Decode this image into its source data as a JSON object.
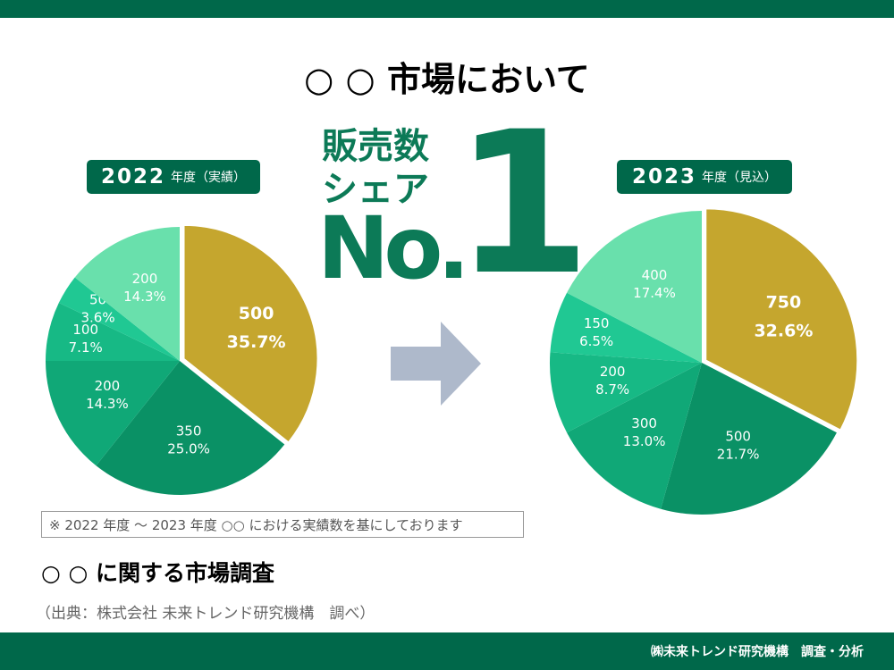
{
  "title": "○ ○ 市場において",
  "headline": {
    "line1": "販売数",
    "line2": "シェア",
    "no": "No.",
    "one": "1"
  },
  "chart_data": [
    {
      "type": "pie",
      "year_label": "2022",
      "year_suffix": "年度（実績）",
      "values": [
        500,
        350,
        200,
        100,
        50,
        200
      ],
      "percent_labels": [
        "35.7%",
        "25.0%",
        "14.3%",
        "7.1%",
        "3.6%",
        "14.3%"
      ],
      "colors": [
        "#C5A62E",
        "#0A9165",
        "#10A877",
        "#17B985",
        "#20C893",
        "#69E0AC"
      ],
      "highlight_index": 0,
      "start": "top",
      "direction": "clockwise"
    },
    {
      "type": "pie",
      "year_label": "2023",
      "year_suffix": "年度（見込）",
      "values": [
        750,
        500,
        300,
        200,
        150,
        400
      ],
      "percent_labels": [
        "32.6%",
        "21.7%",
        "13.0%",
        "8.7%",
        "6.5%",
        "17.4%"
      ],
      "colors": [
        "#C5A62E",
        "#0A9165",
        "#10A877",
        "#17B985",
        "#20C893",
        "#69E0AC"
      ],
      "highlight_index": 0,
      "start": "top",
      "direction": "clockwise"
    }
  ],
  "arrow_color": "#AEB9CB",
  "note": "※ 2022 年度 〜 2023 年度 ○○ における実績数を基にしております",
  "sub_title": "○ ○ に関する市場調査",
  "source": "（出典：株式会社 未来トレンド研究機構　調べ）",
  "footer": "㈱未来トレンド研究機構　調査・分析"
}
